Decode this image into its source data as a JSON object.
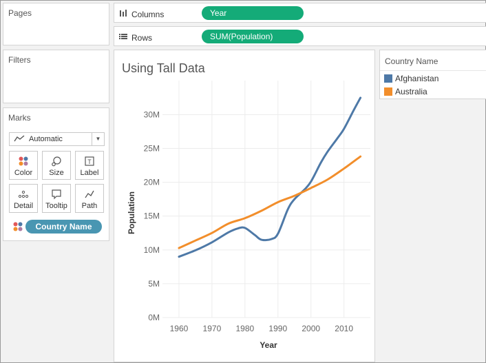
{
  "panes": {
    "pages": "Pages",
    "filters": "Filters",
    "marks": "Marks"
  },
  "shelves": {
    "columns": {
      "label": "Columns",
      "pill": "Year",
      "icon": "columns-icon"
    },
    "rows": {
      "label": "Rows",
      "pill": "SUM(Population)",
      "icon": "rows-icon"
    }
  },
  "marks_card": {
    "mark_type": "Automatic",
    "buttons": [
      {
        "label": "Color",
        "icon": "color-icon"
      },
      {
        "label": "Size",
        "icon": "size-icon"
      },
      {
        "label": "Label",
        "icon": "label-icon"
      },
      {
        "label": "Detail",
        "icon": "detail-icon"
      },
      {
        "label": "Tooltip",
        "icon": "tooltip-icon"
      },
      {
        "label": "Path",
        "icon": "path-icon"
      }
    ],
    "field": "Country Name"
  },
  "legend": {
    "title": "Country Name",
    "items": [
      {
        "label": "Afghanistan",
        "color": "#4e79a7"
      },
      {
        "label": "Australia",
        "color": "#f28e2b"
      }
    ]
  },
  "colors": {
    "shelf_pill": "#14ab78",
    "field_pill": "#4996b2"
  },
  "chart_data": {
    "type": "line",
    "title": "Using Tall Data",
    "xlabel": "Year",
    "ylabel": "Population",
    "xlim": [
      1955,
      2018
    ],
    "ylim": [
      0,
      33000000
    ],
    "x_ticks": [
      1960,
      1970,
      1980,
      1990,
      2000,
      2010
    ],
    "x_tick_labels": [
      "1960",
      "1970",
      "1980",
      "1990",
      "2000",
      "2010"
    ],
    "y_ticks": [
      0,
      5000000,
      10000000,
      15000000,
      20000000,
      25000000,
      30000000
    ],
    "y_tick_labels": [
      "0M",
      "5M",
      "10M",
      "15M",
      "20M",
      "25M",
      "30M"
    ],
    "grid": true,
    "series": [
      {
        "name": "Afghanistan",
        "color": "#4e79a7",
        "x": [
          1960,
          1965,
          1970,
          1975,
          1978,
          1980,
          1983,
          1985,
          1988,
          1990,
          1993,
          1995,
          1998,
          2000,
          2003,
          2005,
          2008,
          2010,
          2013,
          2015
        ],
        "y": [
          8996000,
          9940000,
          11126000,
          12600000,
          13200000,
          13250000,
          12200000,
          11500000,
          11600000,
          12400000,
          16000000,
          17500000,
          18900000,
          20100000,
          22900000,
          24500000,
          26500000,
          27900000,
          30700000,
          32500000
        ]
      },
      {
        "name": "Australia",
        "color": "#f28e2b",
        "x": [
          1960,
          1965,
          1970,
          1975,
          1980,
          1985,
          1990,
          1995,
          2000,
          2005,
          2010,
          2015
        ],
        "y": [
          10276000,
          11388000,
          12507000,
          13893000,
          14692000,
          15788000,
          17065000,
          18004000,
          19153000,
          20395000,
          22032000,
          23815000
        ]
      }
    ]
  }
}
